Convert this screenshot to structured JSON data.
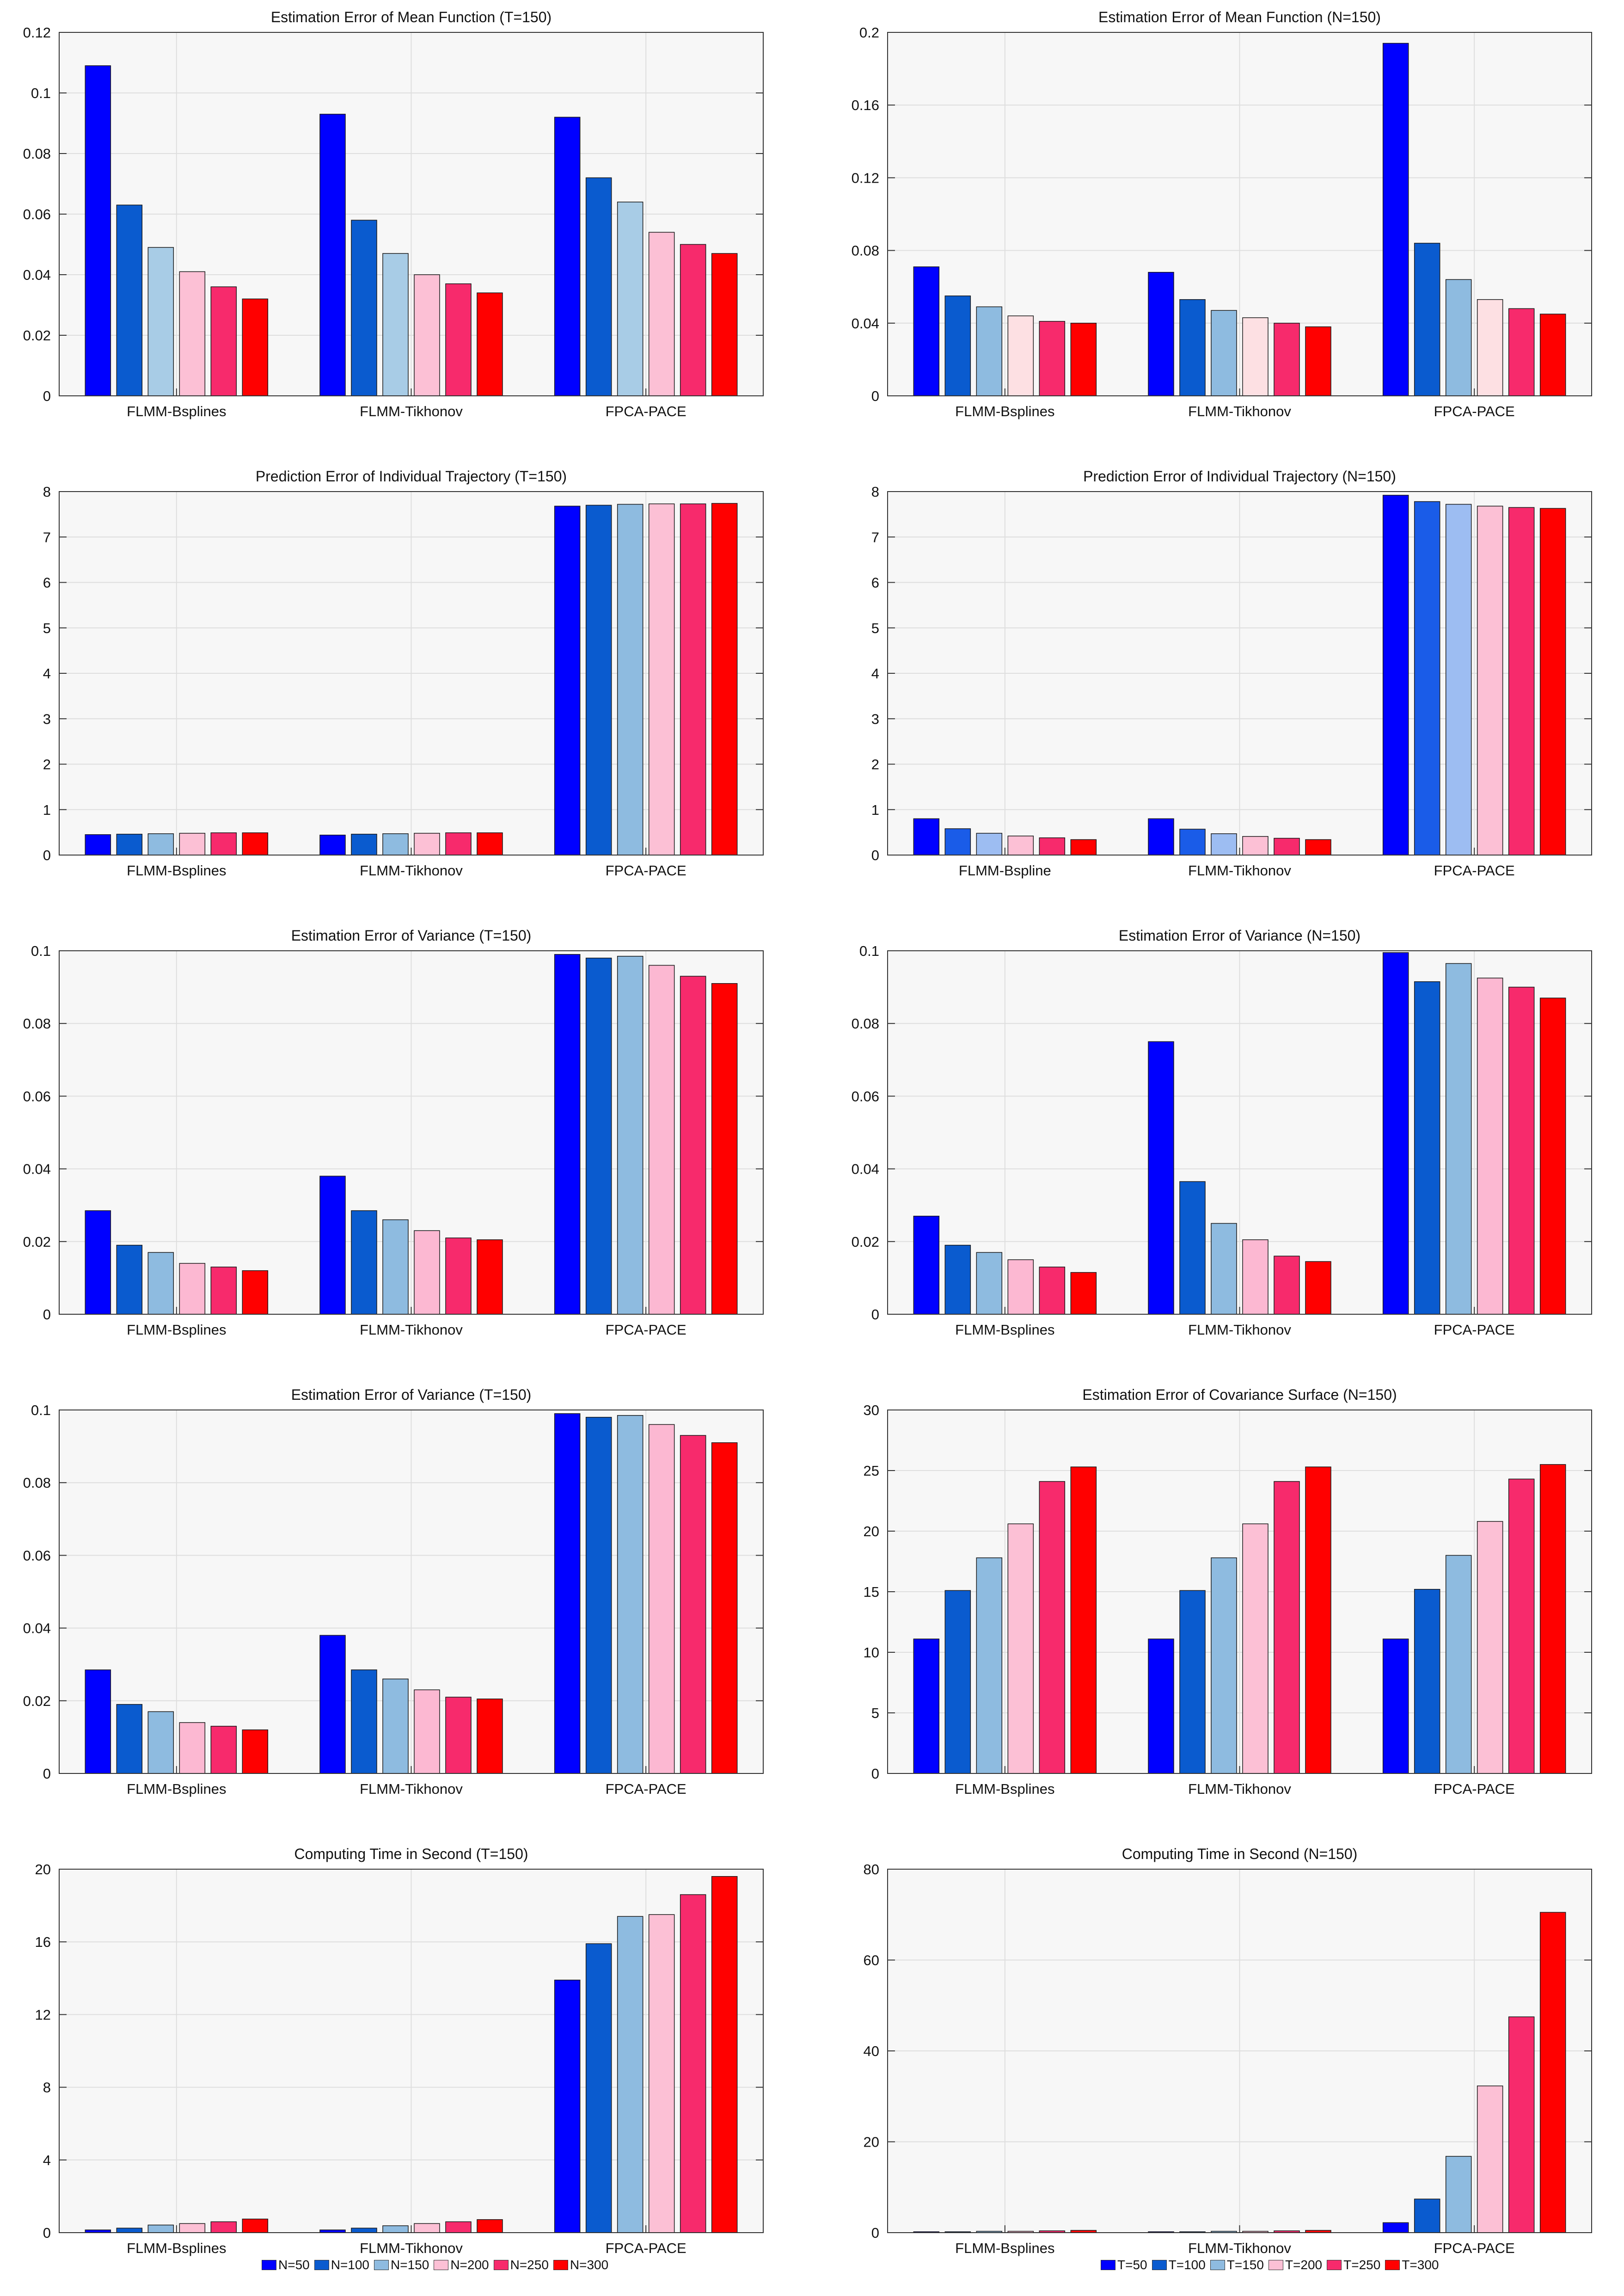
{
  "colors": [
    "#0000ff",
    "#0a5bcf",
    "#8ebbe0",
    "#fcc0d5",
    "#f72a6c",
    "#ff0000"
  ],
  "legend_left": {
    "labels": [
      "N=50",
      "N=100",
      "N=150",
      "N=200",
      "N=250",
      "N=300"
    ]
  },
  "legend_right": {
    "labels": [
      "T=50",
      "T=100",
      "T=150",
      "T=200",
      "T=250",
      "T=300"
    ]
  },
  "chart_data": [
    {
      "type": "bar",
      "title": "Estimation Error of Mean Function (T=150)",
      "categories": [
        "FLMM-Bsplines",
        "FLMM-Tikhonov",
        "FPCA-PACE"
      ],
      "ylim": [
        0,
        0.12
      ],
      "yticks": [
        "0",
        "0.02",
        "0.04",
        "0.06",
        "0.08",
        "0.1",
        "0.12"
      ],
      "colors": [
        "#0000ff",
        "#0a5bcf",
        "#a8cce6",
        "#fcc0d5",
        "#f72a6c",
        "#ff0000"
      ],
      "series": [
        {
          "name": "N=50",
          "values": [
            0.109,
            0.093,
            0.092
          ]
        },
        {
          "name": "N=100",
          "values": [
            0.063,
            0.058,
            0.072
          ]
        },
        {
          "name": "N=150",
          "values": [
            0.049,
            0.047,
            0.064
          ]
        },
        {
          "name": "N=200",
          "values": [
            0.041,
            0.04,
            0.054
          ]
        },
        {
          "name": "N=250",
          "values": [
            0.036,
            0.037,
            0.05
          ]
        },
        {
          "name": "N=300",
          "values": [
            0.032,
            0.034,
            0.047
          ]
        }
      ]
    },
    {
      "type": "bar",
      "title": "Estimation Error of Mean Function (N=150)",
      "categories": [
        "FLMM-Bsplines",
        "FLMM-Tikhonov",
        "FPCA-PACE"
      ],
      "ylim": [
        0,
        0.2
      ],
      "yticks": [
        "0",
        "0.04",
        "0.08",
        "0.12",
        "0.16",
        "0.2"
      ],
      "colors": [
        "#0000ff",
        "#0a5bcf",
        "#8ebbe0",
        "#fde0e3",
        "#f72a6c",
        "#ff0000"
      ],
      "series": [
        {
          "name": "T=50",
          "values": [
            0.071,
            0.068,
            0.194
          ]
        },
        {
          "name": "T=100",
          "values": [
            0.055,
            0.053,
            0.084
          ]
        },
        {
          "name": "T=150",
          "values": [
            0.049,
            0.047,
            0.064
          ]
        },
        {
          "name": "T=200",
          "values": [
            0.044,
            0.043,
            0.053
          ]
        },
        {
          "name": "T=250",
          "values": [
            0.041,
            0.04,
            0.048
          ]
        },
        {
          "name": "T=300",
          "values": [
            0.04,
            0.038,
            0.045
          ]
        }
      ]
    },
    {
      "type": "bar",
      "title": "Prediction Error of Individual Trajectory (T=150)",
      "categories": [
        "FLMM-Bsplines",
        "FLMM-Tikhonov",
        "FPCA-PACE"
      ],
      "ylim": [
        0,
        8
      ],
      "yticks": [
        "0",
        "1",
        "2",
        "3",
        "4",
        "5",
        "6",
        "7",
        "8"
      ],
      "colors": [
        "#0000ff",
        "#0a5bcf",
        "#8ebbe0",
        "#fcc0d5",
        "#f72a6c",
        "#ff0000"
      ],
      "series": [
        {
          "name": "N=50",
          "values": [
            0.45,
            0.44,
            7.68
          ]
        },
        {
          "name": "N=100",
          "values": [
            0.46,
            0.46,
            7.7
          ]
        },
        {
          "name": "N=150",
          "values": [
            0.47,
            0.47,
            7.72
          ]
        },
        {
          "name": "N=200",
          "values": [
            0.48,
            0.48,
            7.73
          ]
        },
        {
          "name": "N=250",
          "values": [
            0.49,
            0.49,
            7.73
          ]
        },
        {
          "name": "N=300",
          "values": [
            0.49,
            0.49,
            7.74
          ]
        }
      ]
    },
    {
      "type": "bar",
      "title": "Prediction Error of Individual Trajectory (N=150)",
      "categories": [
        "FLMM-Bspline",
        "FLMM-Tikhonov",
        "FPCA-PACE"
      ],
      "ylim": [
        0,
        8
      ],
      "yticks": [
        "0",
        "1",
        "2",
        "3",
        "4",
        "5",
        "6",
        "7",
        "8"
      ],
      "colors": [
        "#0000ff",
        "#1a5ce8",
        "#9dbdf2",
        "#fcc0d5",
        "#f72a6c",
        "#ff0000"
      ],
      "series": [
        {
          "name": "T=50",
          "values": [
            0.8,
            0.8,
            7.92
          ]
        },
        {
          "name": "T=100",
          "values": [
            0.58,
            0.57,
            7.78
          ]
        },
        {
          "name": "T=150",
          "values": [
            0.48,
            0.47,
            7.72
          ]
        },
        {
          "name": "T=200",
          "values": [
            0.42,
            0.41,
            7.68
          ]
        },
        {
          "name": "T=250",
          "values": [
            0.38,
            0.37,
            7.65
          ]
        },
        {
          "name": "T=300",
          "values": [
            0.34,
            0.34,
            7.63
          ]
        }
      ]
    },
    {
      "type": "bar",
      "title": "Estimation Error of Variance (T=150)",
      "categories": [
        "FLMM-Bsplines",
        "FLMM-Tikhonov",
        "FPCA-PACE"
      ],
      "ylim": [
        0,
        0.1
      ],
      "yticks": [
        "0",
        "0.02",
        "0.04",
        "0.06",
        "0.08",
        "0.1"
      ],
      "colors": [
        "#0000ff",
        "#0a5bcf",
        "#8ebbe0",
        "#fcb8d2",
        "#f72a6c",
        "#ff0000"
      ],
      "series": [
        {
          "name": "N=50",
          "values": [
            0.0285,
            0.038,
            0.099
          ]
        },
        {
          "name": "N=100",
          "values": [
            0.019,
            0.0285,
            0.098
          ]
        },
        {
          "name": "N=150",
          "values": [
            0.017,
            0.026,
            0.0985
          ]
        },
        {
          "name": "N=200",
          "values": [
            0.014,
            0.023,
            0.096
          ]
        },
        {
          "name": "N=250",
          "values": [
            0.013,
            0.021,
            0.093
          ]
        },
        {
          "name": "N=300",
          "values": [
            0.012,
            0.0205,
            0.091
          ]
        }
      ]
    },
    {
      "type": "bar",
      "title": "Estimation Error of Variance (N=150)",
      "categories": [
        "FLMM-Bsplines",
        "FLMM-Tikhonov",
        "FPCA-PACE"
      ],
      "ylim": [
        0,
        0.1
      ],
      "yticks": [
        "0",
        "0.02",
        "0.04",
        "0.06",
        "0.08",
        "0.1"
      ],
      "colors": [
        "#0000ff",
        "#0a5bcf",
        "#8ebbe0",
        "#fcb8d2",
        "#f72a6c",
        "#ff0000"
      ],
      "series": [
        {
          "name": "T=50",
          "values": [
            0.027,
            0.075,
            0.0995
          ]
        },
        {
          "name": "T=100",
          "values": [
            0.019,
            0.0365,
            0.0915
          ]
        },
        {
          "name": "T=150",
          "values": [
            0.017,
            0.025,
            0.0965
          ]
        },
        {
          "name": "T=200",
          "values": [
            0.015,
            0.0205,
            0.0925
          ]
        },
        {
          "name": "T=250",
          "values": [
            0.013,
            0.016,
            0.09
          ]
        },
        {
          "name": "T=300",
          "values": [
            0.0115,
            0.0145,
            0.087
          ]
        }
      ]
    },
    {
      "type": "bar",
      "title": "Estimation Error of Variance (T=150)",
      "categories": [
        "FLMM-Bsplines",
        "FLMM-Tikhonov",
        "FPCA-PACE"
      ],
      "ylim": [
        0,
        0.1
      ],
      "yticks": [
        "0",
        "0.02",
        "0.04",
        "0.06",
        "0.08",
        "0.1"
      ],
      "colors": [
        "#0000ff",
        "#0a5bcf",
        "#8ebbe0",
        "#fcb8d2",
        "#f72a6c",
        "#ff0000"
      ],
      "series": [
        {
          "name": "N=50",
          "values": [
            0.0285,
            0.038,
            0.099
          ]
        },
        {
          "name": "N=100",
          "values": [
            0.019,
            0.0285,
            0.098
          ]
        },
        {
          "name": "N=150",
          "values": [
            0.017,
            0.026,
            0.0985
          ]
        },
        {
          "name": "N=200",
          "values": [
            0.014,
            0.023,
            0.096
          ]
        },
        {
          "name": "N=250",
          "values": [
            0.013,
            0.021,
            0.093
          ]
        },
        {
          "name": "N=300",
          "values": [
            0.012,
            0.0205,
            0.091
          ]
        }
      ]
    },
    {
      "type": "bar",
      "title": "Estimation Error of Covariance Surface (N=150)",
      "categories": [
        "FLMM-Bsplines",
        "FLMM-Tikhonov",
        "FPCA-PACE"
      ],
      "ylim": [
        0,
        30
      ],
      "yticks": [
        "0",
        "5",
        "10",
        "15",
        "20",
        "25",
        "30"
      ],
      "colors": [
        "#0000ff",
        "#0a5bcf",
        "#8ebbe0",
        "#fcc0d5",
        "#f72a6c",
        "#ff0000"
      ],
      "series": [
        {
          "name": "T=50",
          "values": [
            11.1,
            11.1,
            11.1
          ]
        },
        {
          "name": "T=100",
          "values": [
            15.1,
            15.1,
            15.2
          ]
        },
        {
          "name": "T=150",
          "values": [
            17.8,
            17.8,
            18.0
          ]
        },
        {
          "name": "T=200",
          "values": [
            20.6,
            20.6,
            20.8
          ]
        },
        {
          "name": "T=250",
          "values": [
            24.1,
            24.1,
            24.3
          ]
        },
        {
          "name": "T=300",
          "values": [
            25.3,
            25.3,
            25.5
          ]
        }
      ]
    },
    {
      "type": "bar",
      "title": "Computing Time in  Second (T=150)",
      "categories": [
        "FLMM-Bsplines",
        "FLMM-Tikhonov",
        "FPCA-PACE"
      ],
      "ylim": [
        0,
        20
      ],
      "yticks": [
        "0",
        "4",
        "8",
        "12",
        "16",
        "20"
      ],
      "colors": [
        "#0000ff",
        "#0a5bcf",
        "#8ebbe0",
        "#fcc0d5",
        "#f72a6c",
        "#ff0000"
      ],
      "series": [
        {
          "name": "N=50",
          "values": [
            0.15,
            0.15,
            13.9
          ]
        },
        {
          "name": "N=100",
          "values": [
            0.25,
            0.25,
            15.9
          ]
        },
        {
          "name": "N=150",
          "values": [
            0.42,
            0.38,
            17.4
          ]
        },
        {
          "name": "N=200",
          "values": [
            0.5,
            0.5,
            17.5
          ]
        },
        {
          "name": "N=250",
          "values": [
            0.6,
            0.6,
            18.6
          ]
        },
        {
          "name": "N=300",
          "values": [
            0.75,
            0.72,
            19.6
          ]
        }
      ]
    },
    {
      "type": "bar",
      "title": "Computing Time in  Second (N=150)",
      "categories": [
        "FLMM-Bsplines",
        "FLMM-Tikhonov",
        "FPCA-PACE"
      ],
      "ylim": [
        0,
        80
      ],
      "yticks": [
        "0",
        "20",
        "40",
        "60",
        "80"
      ],
      "colors": [
        "#0000ff",
        "#0a5bcf",
        "#8ebbe0",
        "#fcc0d5",
        "#f72a6c",
        "#ff0000"
      ],
      "series": [
        {
          "name": "T=50",
          "values": [
            0.2,
            0.2,
            2.2
          ]
        },
        {
          "name": "T=100",
          "values": [
            0.2,
            0.2,
            7.4
          ]
        },
        {
          "name": "T=150",
          "values": [
            0.3,
            0.3,
            16.8
          ]
        },
        {
          "name": "T=200",
          "values": [
            0.3,
            0.3,
            32.3
          ]
        },
        {
          "name": "T=250",
          "values": [
            0.4,
            0.4,
            47.5
          ]
        },
        {
          "name": "T=300",
          "values": [
            0.5,
            0.5,
            70.5
          ]
        }
      ]
    }
  ]
}
